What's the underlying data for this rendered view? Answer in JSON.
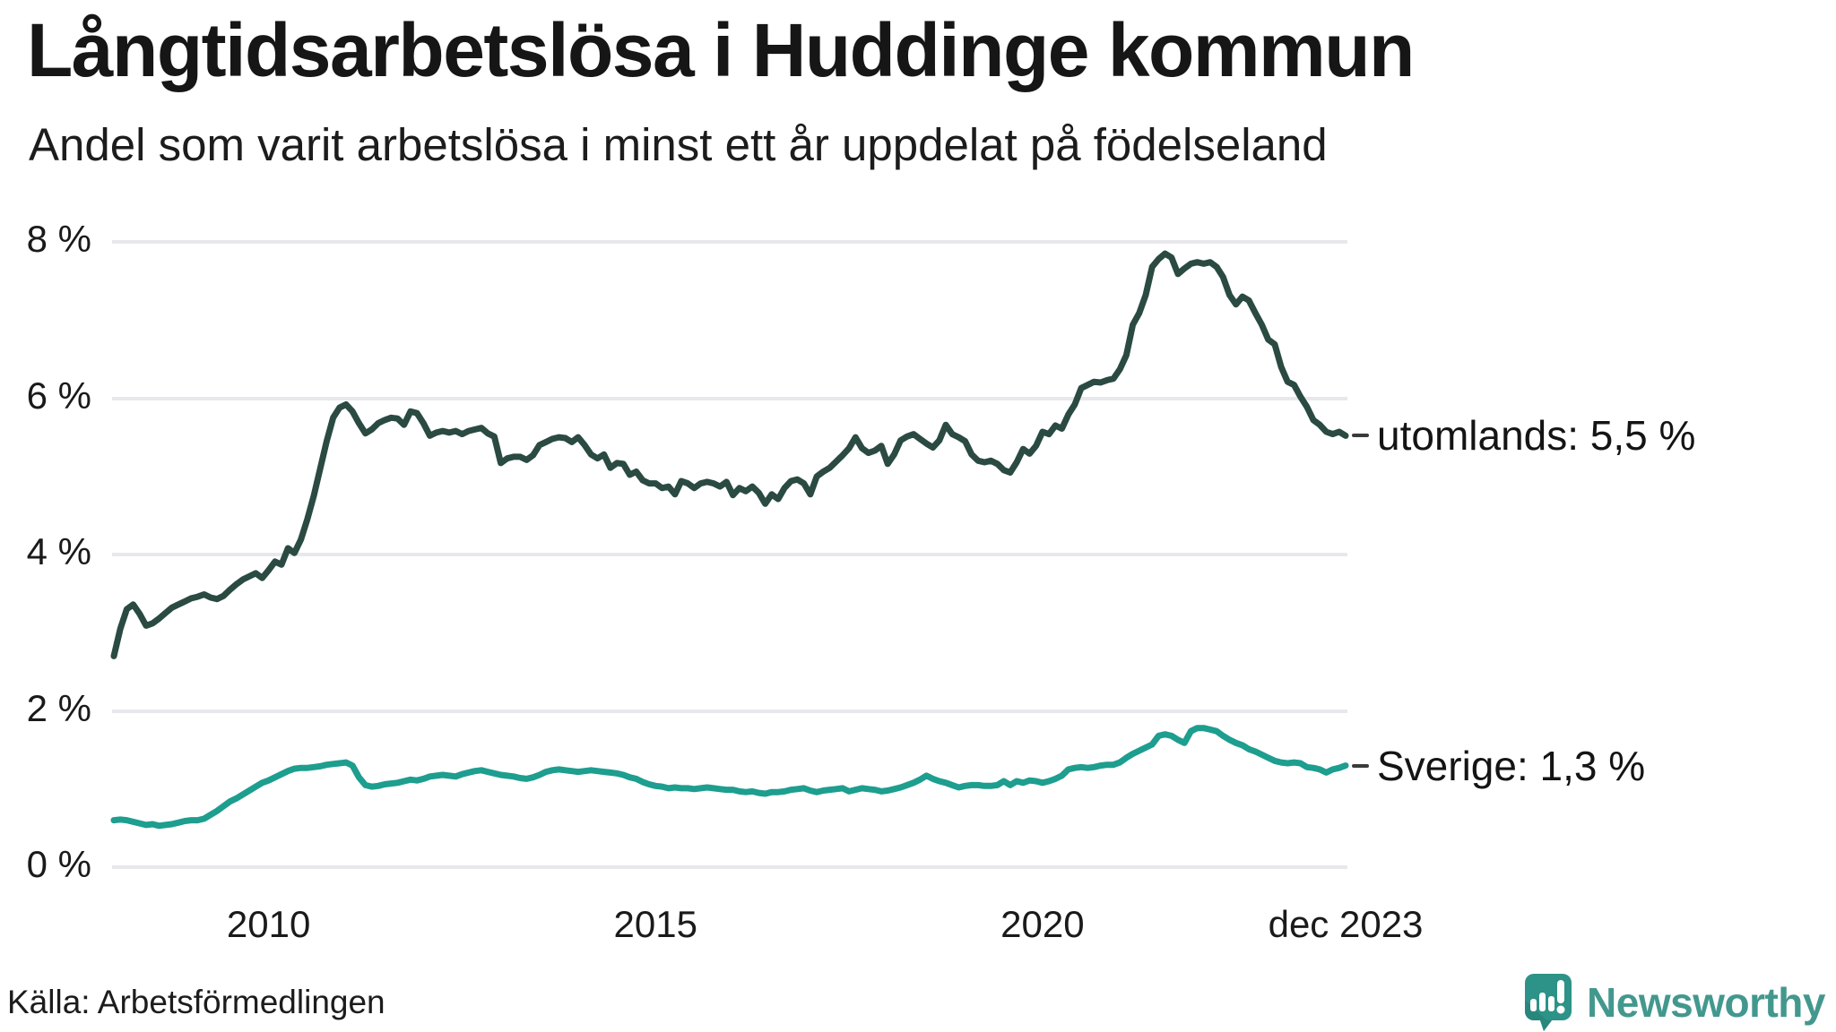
{
  "title": "Långtidsarbetslösa i Huddinge kommun",
  "subtitle": "Andel som varit arbetslösa i minst ett år uppdelat på födelseland",
  "source": "Källa: Arbetsförmedlingen",
  "branding": {
    "name": "Newsworthy",
    "icon": "newsworthy-speech-bubble-chart-icon",
    "text_color": "#43988e",
    "icon_color": "#2d9287"
  },
  "colors": {
    "utomlands_line": "#2a4a42",
    "sverige_line": "#1d9e8f",
    "grid": "#e8e8ec",
    "text": "#1a1a1a"
  },
  "chart_data": {
    "type": "line",
    "title": "Långtidsarbetslösa i Huddinge kommun",
    "subtitle": "Andel som varit arbetslösa i minst ett år uppdelat på födelseland",
    "x_unit": "month",
    "x_start": "2008-01",
    "x_end": "2023-12",
    "ylim": [
      0,
      8
    ],
    "grid": "horizontal",
    "legend_position": "end-of-line",
    "y_ticks": [
      {
        "label": "0 %",
        "value": 0
      },
      {
        "label": "2 %",
        "value": 2
      },
      {
        "label": "4 %",
        "value": 4
      },
      {
        "label": "6 %",
        "value": 6
      },
      {
        "label": "8 %",
        "value": 8
      }
    ],
    "x_ticks": [
      {
        "label": "2010",
        "month_index": 24
      },
      {
        "label": "2015",
        "month_index": 84
      },
      {
        "label": "2020",
        "month_index": 144
      },
      {
        "label": "dec 2023",
        "month_index": 191
      }
    ],
    "series": [
      {
        "name": "utomlands",
        "end_label": "utomlands: 5,5 %",
        "end_value_label": "5,5 %",
        "color": "#2a4a42",
        "values": [
          2.7,
          3.05,
          3.3,
          3.36,
          3.24,
          3.09,
          3.12,
          3.18,
          3.25,
          3.32,
          3.36,
          3.4,
          3.44,
          3.46,
          3.49,
          3.45,
          3.43,
          3.47,
          3.55,
          3.62,
          3.68,
          3.72,
          3.76,
          3.7,
          3.8,
          3.91,
          3.87,
          4.08,
          4.02,
          4.19,
          4.45,
          4.75,
          5.1,
          5.45,
          5.75,
          5.88,
          5.92,
          5.83,
          5.68,
          5.55,
          5.6,
          5.68,
          5.72,
          5.75,
          5.74,
          5.66,
          5.83,
          5.81,
          5.68,
          5.52,
          5.56,
          5.58,
          5.56,
          5.58,
          5.54,
          5.58,
          5.6,
          5.62,
          5.55,
          5.51,
          5.17,
          5.23,
          5.25,
          5.25,
          5.21,
          5.27,
          5.4,
          5.44,
          5.48,
          5.5,
          5.49,
          5.44,
          5.5,
          5.4,
          5.28,
          5.23,
          5.28,
          5.11,
          5.17,
          5.16,
          5.02,
          5.06,
          4.95,
          4.91,
          4.91,
          4.85,
          4.87,
          4.77,
          4.94,
          4.91,
          4.85,
          4.91,
          4.93,
          4.91,
          4.87,
          4.93,
          4.76,
          4.85,
          4.81,
          4.87,
          4.79,
          4.65,
          4.77,
          4.71,
          4.85,
          4.94,
          4.96,
          4.91,
          4.77,
          5.0,
          5.06,
          5.11,
          5.19,
          5.27,
          5.36,
          5.5,
          5.36,
          5.3,
          5.33,
          5.39,
          5.16,
          5.28,
          5.46,
          5.51,
          5.54,
          5.48,
          5.42,
          5.37,
          5.46,
          5.66,
          5.54,
          5.5,
          5.45,
          5.28,
          5.2,
          5.18,
          5.2,
          5.16,
          5.08,
          5.05,
          5.18,
          5.35,
          5.29,
          5.39,
          5.57,
          5.54,
          5.65,
          5.61,
          5.79,
          5.92,
          6.13,
          6.17,
          6.21,
          6.2,
          6.23,
          6.25,
          6.37,
          6.55,
          6.94,
          7.09,
          7.32,
          7.68,
          7.78,
          7.85,
          7.8,
          7.59,
          7.66,
          7.72,
          7.74,
          7.72,
          7.74,
          7.68,
          7.55,
          7.32,
          7.2,
          7.3,
          7.25,
          7.09,
          6.94,
          6.75,
          6.69,
          6.4,
          6.21,
          6.17,
          6.02,
          5.89,
          5.72,
          5.66,
          5.57,
          5.54,
          5.57,
          5.52
        ]
      },
      {
        "name": "Sverige",
        "end_label": "Sverige: 1,3 %",
        "end_value_label": "1,3 %",
        "color": "#1d9e8f",
        "values": [
          0.6,
          0.61,
          0.6,
          0.58,
          0.56,
          0.54,
          0.55,
          0.53,
          0.54,
          0.55,
          0.57,
          0.59,
          0.6,
          0.6,
          0.62,
          0.67,
          0.72,
          0.78,
          0.84,
          0.88,
          0.93,
          0.98,
          1.03,
          1.08,
          1.11,
          1.15,
          1.19,
          1.23,
          1.26,
          1.27,
          1.27,
          1.28,
          1.29,
          1.31,
          1.32,
          1.33,
          1.34,
          1.3,
          1.15,
          1.05,
          1.03,
          1.04,
          1.06,
          1.07,
          1.08,
          1.1,
          1.12,
          1.11,
          1.13,
          1.16,
          1.17,
          1.18,
          1.17,
          1.16,
          1.19,
          1.21,
          1.23,
          1.24,
          1.22,
          1.2,
          1.18,
          1.17,
          1.16,
          1.14,
          1.13,
          1.15,
          1.18,
          1.22,
          1.24,
          1.25,
          1.24,
          1.23,
          1.22,
          1.23,
          1.24,
          1.23,
          1.22,
          1.21,
          1.2,
          1.18,
          1.15,
          1.13,
          1.09,
          1.06,
          1.04,
          1.03,
          1.01,
          1.02,
          1.01,
          1.01,
          1.0,
          1.01,
          1.02,
          1.01,
          1.0,
          0.99,
          0.99,
          0.97,
          0.96,
          0.97,
          0.95,
          0.94,
          0.96,
          0.96,
          0.97,
          0.99,
          1.0,
          1.01,
          0.98,
          0.96,
          0.98,
          0.99,
          1.0,
          1.01,
          0.97,
          0.99,
          1.01,
          1.0,
          0.99,
          0.97,
          0.98,
          1.0,
          1.02,
          1.05,
          1.08,
          1.12,
          1.17,
          1.13,
          1.1,
          1.08,
          1.05,
          1.02,
          1.04,
          1.05,
          1.05,
          1.04,
          1.04,
          1.05,
          1.1,
          1.05,
          1.1,
          1.08,
          1.11,
          1.1,
          1.08,
          1.1,
          1.13,
          1.17,
          1.25,
          1.27,
          1.28,
          1.27,
          1.28,
          1.3,
          1.31,
          1.31,
          1.34,
          1.4,
          1.45,
          1.49,
          1.53,
          1.57,
          1.68,
          1.7,
          1.68,
          1.63,
          1.59,
          1.74,
          1.78,
          1.78,
          1.76,
          1.74,
          1.68,
          1.63,
          1.59,
          1.56,
          1.51,
          1.48,
          1.44,
          1.4,
          1.36,
          1.34,
          1.33,
          1.34,
          1.33,
          1.28,
          1.27,
          1.25,
          1.21,
          1.25,
          1.27,
          1.3
        ]
      }
    ]
  }
}
